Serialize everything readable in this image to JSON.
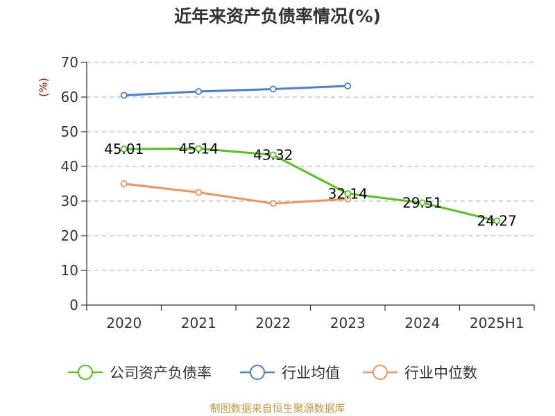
{
  "chart_data": {
    "type": "line",
    "title": "近年来资产负债率情况(%)",
    "ylabel": "(%)",
    "xlabel": "",
    "ylim": [
      0,
      70
    ],
    "yticks": [
      0,
      10,
      20,
      30,
      40,
      50,
      60,
      70
    ],
    "grid": true,
    "categories": [
      "2020",
      "2021",
      "2022",
      "2023",
      "2024",
      "2025H1"
    ],
    "series": [
      {
        "name": "公司资产负债率",
        "color": "#52c41a",
        "values": [
          45.01,
          45.14,
          43.32,
          32.14,
          29.51,
          24.27
        ],
        "data_labels": [
          "45.01",
          "45.14",
          "43.32",
          "32.14",
          "29.51",
          "24.27"
        ]
      },
      {
        "name": "行业均值",
        "color": "#4a7fd6",
        "values": [
          60.5,
          61.6,
          62.3,
          63.2,
          null,
          null
        ]
      },
      {
        "name": "行业中位数",
        "color": "#f7905a",
        "values": [
          35.0,
          32.5,
          29.3,
          30.6,
          null,
          null
        ]
      }
    ],
    "legend_position": "bottom",
    "source": "制图数据来自恒生聚源数据库"
  }
}
